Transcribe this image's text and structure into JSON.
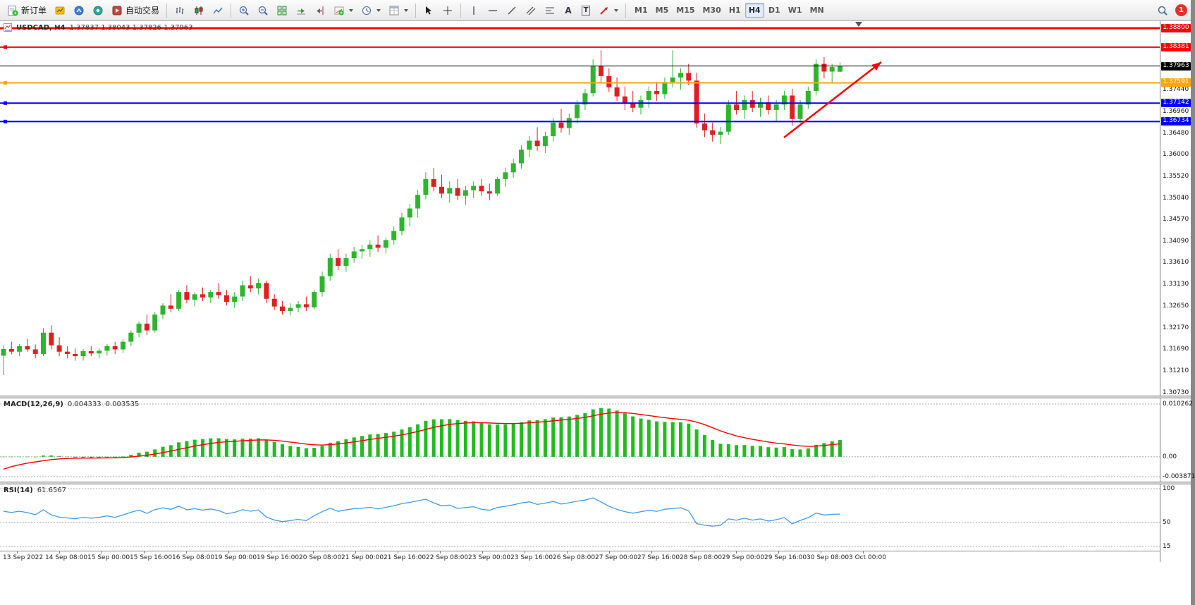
{
  "toolbar": {
    "new_order_label": "新订单",
    "autotrading_label": "自动交易",
    "text_tool_glyph": "A",
    "text_label_glyph": "T",
    "timeframes": [
      "M1",
      "M5",
      "M15",
      "M30",
      "H1",
      "H4",
      "D1",
      "W1",
      "MN"
    ],
    "active_timeframe": "H4",
    "notification_badge": "1"
  },
  "chart": {
    "title": "USDCAD, H4",
    "ohlc": "1.37837 1.38043 1.37826 1.37963"
  },
  "chart_data": {
    "type": "candlestick",
    "symbol": "USDCAD",
    "period": "H4",
    "bull_color": "#2DB52D",
    "bear_color": "#DF1F1F",
    "y_range": [
      1.3073,
      1.388
    ],
    "price_ticks": [
      "1.37440",
      "1.36960",
      "1.36480",
      "1.36000",
      "1.35520",
      "1.35040",
      "1.34570",
      "1.34090",
      "1.33610",
      "1.33130",
      "1.32650",
      "1.32170",
      "1.31690",
      "1.31210",
      "1.30730"
    ],
    "levels": [
      {
        "role": "resistance",
        "price": 1.388,
        "label": "1.38800",
        "color": "#FF0000",
        "width": 3,
        "handle": false
      },
      {
        "role": "resistance",
        "price": 1.38381,
        "label": "1.38381",
        "color": "#FF0000",
        "width": 2,
        "handle": true
      },
      {
        "role": "current-price",
        "price": 1.37963,
        "label": "1.37963",
        "color": "#000000",
        "width": 1,
        "handle": false
      },
      {
        "role": "pivot",
        "price": 1.37591,
        "label": "1.37591",
        "color": "#FFA500",
        "width": 2,
        "handle": true
      },
      {
        "role": "support",
        "price": 1.37142,
        "label": "1.37142",
        "color": "#0000FF",
        "width": 2,
        "handle": true
      },
      {
        "role": "support",
        "price": 1.36734,
        "label": "1.36734",
        "color": "#0000FF",
        "width": 2,
        "handle": true
      }
    ],
    "time_labels": [
      "13 Sep 2022",
      "14 Sep 08:00",
      "15 Sep 00:00",
      "15 Sep 16:00",
      "16 Sep 08:00",
      "19 Sep 00:00",
      "19 Sep 16:00",
      "20 Sep 08:00",
      "21 Sep 00:00",
      "21 Sep 16:00",
      "22 Sep 08:00",
      "23 Sep 00:00",
      "23 Sep 16:00",
      "26 Sep 08:00",
      "27 Sep 00:00",
      "27 Sep 16:00",
      "28 Sep 08:00",
      "29 Sep 00:00",
      "29 Sep 16:00",
      "30 Sep 08:00",
      "3 Oct 00:00"
    ],
    "candles": [
      [
        1.3155,
        1.3178,
        1.3112,
        1.317
      ],
      [
        1.317,
        1.3186,
        1.3158,
        1.3164
      ],
      [
        1.3164,
        1.3181,
        1.3154,
        1.3176
      ],
      [
        1.3176,
        1.3192,
        1.3164,
        1.3169
      ],
      [
        1.3169,
        1.318,
        1.3149,
        1.3159
      ],
      [
        1.3159,
        1.3216,
        1.3154,
        1.3206
      ],
      [
        1.3206,
        1.3222,
        1.3169,
        1.3178
      ],
      [
        1.3178,
        1.3196,
        1.3154,
        1.3164
      ],
      [
        1.3164,
        1.3176,
        1.3149,
        1.3159
      ],
      [
        1.3159,
        1.3171,
        1.3144,
        1.3154
      ],
      [
        1.3154,
        1.317,
        1.3144,
        1.3165
      ],
      [
        1.3165,
        1.3176,
        1.3154,
        1.316
      ],
      [
        1.316,
        1.3171,
        1.3149,
        1.3166
      ],
      [
        1.3166,
        1.3181,
        1.3155,
        1.3176
      ],
      [
        1.3176,
        1.3186,
        1.3159,
        1.3169
      ],
      [
        1.3169,
        1.3191,
        1.3161,
        1.3186
      ],
      [
        1.3186,
        1.3211,
        1.3176,
        1.3206
      ],
      [
        1.3206,
        1.3231,
        1.3196,
        1.3226
      ],
      [
        1.3226,
        1.3246,
        1.3201,
        1.3211
      ],
      [
        1.3211,
        1.3251,
        1.3206,
        1.3246
      ],
      [
        1.3246,
        1.3271,
        1.3236,
        1.3266
      ],
      [
        1.3266,
        1.3291,
        1.3251,
        1.3259
      ],
      [
        1.3259,
        1.3301,
        1.3254,
        1.3296
      ],
      [
        1.3296,
        1.3311,
        1.3271,
        1.3279
      ],
      [
        1.3279,
        1.3296,
        1.3264,
        1.3291
      ],
      [
        1.3291,
        1.3306,
        1.3276,
        1.3284
      ],
      [
        1.3284,
        1.3301,
        1.3271,
        1.3296
      ],
      [
        1.3296,
        1.3316,
        1.3281,
        1.3289
      ],
      [
        1.3289,
        1.3301,
        1.3266,
        1.3274
      ],
      [
        1.3274,
        1.3296,
        1.3261,
        1.3286
      ],
      [
        1.3286,
        1.3321,
        1.3276,
        1.3311
      ],
      [
        1.3311,
        1.3331,
        1.3296,
        1.3304
      ],
      [
        1.3304,
        1.3326,
        1.3291,
        1.3316
      ],
      [
        1.3316,
        1.3321,
        1.3271,
        1.3281
      ],
      [
        1.3281,
        1.3291,
        1.3256,
        1.3264
      ],
      [
        1.3264,
        1.3276,
        1.3246,
        1.3254
      ],
      [
        1.3254,
        1.3271,
        1.3244,
        1.3261
      ],
      [
        1.3261,
        1.3276,
        1.3251,
        1.3269
      ],
      [
        1.3269,
        1.3286,
        1.3254,
        1.3262
      ],
      [
        1.3262,
        1.3301,
        1.3258,
        1.3296
      ],
      [
        1.3296,
        1.3341,
        1.3286,
        1.3331
      ],
      [
        1.3331,
        1.3381,
        1.3321,
        1.3371
      ],
      [
        1.3371,
        1.3391,
        1.3344,
        1.3354
      ],
      [
        1.3354,
        1.3381,
        1.3341,
        1.3371
      ],
      [
        1.3371,
        1.3396,
        1.3361,
        1.3386
      ],
      [
        1.3386,
        1.3401,
        1.3369,
        1.3391
      ],
      [
        1.3391,
        1.3411,
        1.3374,
        1.3401
      ],
      [
        1.3401,
        1.3421,
        1.3384,
        1.3394
      ],
      [
        1.3394,
        1.3416,
        1.3381,
        1.3411
      ],
      [
        1.3411,
        1.3441,
        1.3401,
        1.3431
      ],
      [
        1.3431,
        1.3471,
        1.3421,
        1.3461
      ],
      [
        1.3461,
        1.3491,
        1.3441,
        1.3481
      ],
      [
        1.3481,
        1.3521,
        1.3461,
        1.3511
      ],
      [
        1.3511,
        1.3561,
        1.3501,
        1.3546
      ],
      [
        1.3546,
        1.3571,
        1.3519,
        1.3529
      ],
      [
        1.3529,
        1.3556,
        1.3504,
        1.3514
      ],
      [
        1.3514,
        1.3541,
        1.3494,
        1.3526
      ],
      [
        1.3526,
        1.3546,
        1.3499,
        1.3509
      ],
      [
        1.3509,
        1.3531,
        1.3489,
        1.3521
      ],
      [
        1.3521,
        1.3541,
        1.3504,
        1.3531
      ],
      [
        1.3531,
        1.3546,
        1.3509,
        1.3519
      ],
      [
        1.3519,
        1.3536,
        1.3499,
        1.3514
      ],
      [
        1.3514,
        1.3551,
        1.3509,
        1.3546
      ],
      [
        1.3546,
        1.3571,
        1.3529,
        1.3561
      ],
      [
        1.3561,
        1.3591,
        1.3549,
        1.3581
      ],
      [
        1.3581,
        1.3621,
        1.3569,
        1.3611
      ],
      [
        1.3611,
        1.3641,
        1.3594,
        1.3631
      ],
      [
        1.3631,
        1.3661,
        1.3609,
        1.3619
      ],
      [
        1.3619,
        1.3651,
        1.3604,
        1.3641
      ],
      [
        1.3641,
        1.3681,
        1.3629,
        1.3671
      ],
      [
        1.3671,
        1.3701,
        1.3649,
        1.3659
      ],
      [
        1.3659,
        1.3691,
        1.3644,
        1.3681
      ],
      [
        1.3681,
        1.3721,
        1.3669,
        1.3711
      ],
      [
        1.3711,
        1.3746,
        1.3699,
        1.3736
      ],
      [
        1.3736,
        1.3811,
        1.3729,
        1.3796
      ],
      [
        1.3796,
        1.3831,
        1.3759,
        1.3774
      ],
      [
        1.3774,
        1.3791,
        1.3739,
        1.3749
      ],
      [
        1.3749,
        1.3771,
        1.3719,
        1.3729
      ],
      [
        1.3729,
        1.3751,
        1.3699,
        1.3714
      ],
      [
        1.3714,
        1.3741,
        1.3694,
        1.3704
      ],
      [
        1.3704,
        1.3731,
        1.3689,
        1.3721
      ],
      [
        1.3721,
        1.3751,
        1.3704,
        1.3741
      ],
      [
        1.3741,
        1.3761,
        1.3719,
        1.3734
      ],
      [
        1.3734,
        1.3771,
        1.3724,
        1.3761
      ],
      [
        1.3761,
        1.3831,
        1.3749,
        1.3771
      ],
      [
        1.3771,
        1.3791,
        1.3744,
        1.3781
      ],
      [
        1.3781,
        1.3801,
        1.3754,
        1.3764
      ],
      [
        1.3764,
        1.3781,
        1.3659,
        1.3669
      ],
      [
        1.3669,
        1.3691,
        1.3639,
        1.3654
      ],
      [
        1.3654,
        1.3671,
        1.3629,
        1.3644
      ],
      [
        1.3644,
        1.3661,
        1.3624,
        1.3651
      ],
      [
        1.3651,
        1.3721,
        1.3644,
        1.3711
      ],
      [
        1.3711,
        1.3741,
        1.3689,
        1.3699
      ],
      [
        1.3699,
        1.3731,
        1.3679,
        1.3721
      ],
      [
        1.3721,
        1.3741,
        1.3694,
        1.3704
      ],
      [
        1.3704,
        1.3726,
        1.3684,
        1.3716
      ],
      [
        1.3716,
        1.3731,
        1.3689,
        1.3699
      ],
      [
        1.3699,
        1.3721,
        1.3674,
        1.3711
      ],
      [
        1.3711,
        1.3741,
        1.3699,
        1.3731
      ],
      [
        1.3731,
        1.3746,
        1.3664,
        1.3679
      ],
      [
        1.3679,
        1.3721,
        1.3669,
        1.3711
      ],
      [
        1.3711,
        1.3751,
        1.3701,
        1.3741
      ],
      [
        1.3741,
        1.3811,
        1.3731,
        1.3801
      ],
      [
        1.3801,
        1.3816,
        1.3769,
        1.3784
      ],
      [
        1.3784,
        1.3801,
        1.3759,
        1.3794
      ],
      [
        1.37837,
        1.38043,
        1.37826,
        1.37963
      ]
    ],
    "indicators": {
      "macd": {
        "name": "MACD(12,26,9)",
        "values": [
          "0.004333",
          "0.003535"
        ],
        "axis_labels": [
          "0.010262",
          "0.00",
          "-0.003871"
        ],
        "histogram_color": "#22BB22",
        "signal_color": "#FF0000",
        "display_peak": 0.0095
      },
      "rsi": {
        "name": "RSI(14)",
        "value": "61.6567",
        "axis_labels": [
          "100",
          "50",
          "15"
        ],
        "line_color": "#3D9AE8"
      }
    },
    "trend_arrow": {
      "x1": 1112,
      "y1": 165,
      "x2": 1250,
      "y2": 58,
      "color": "#FF0000"
    }
  }
}
